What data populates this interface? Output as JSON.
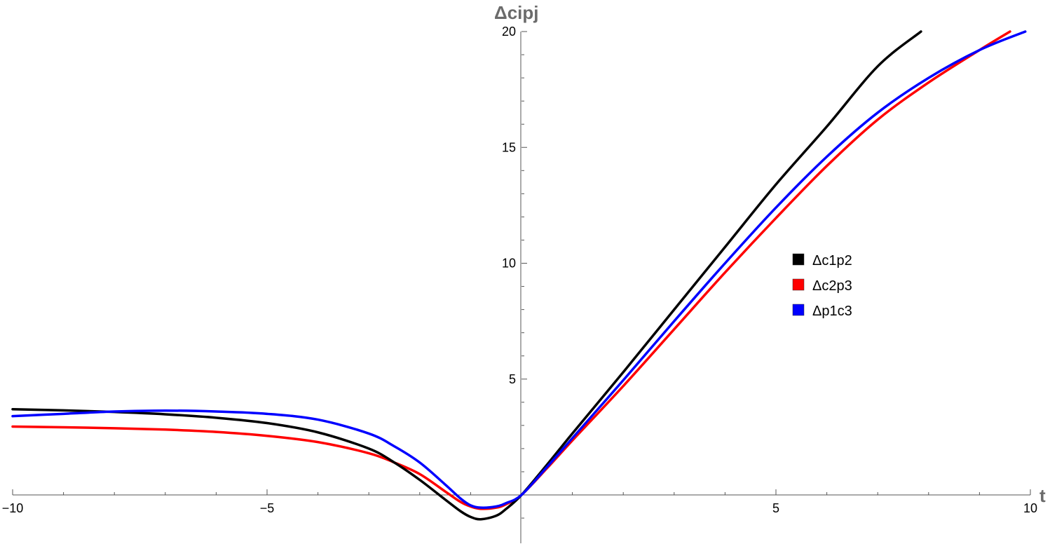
{
  "chart_data": {
    "type": "line",
    "title": "",
    "xlabel": "t",
    "ylabel": "Δcipj",
    "xlim": [
      -10,
      10
    ],
    "ylim": [
      -2,
      20
    ],
    "x_ticks": [
      -10,
      -5,
      5,
      10
    ],
    "y_ticks": [
      5,
      10,
      15,
      20
    ],
    "x_tick_labels": [
      "−10",
      "−5",
      "5",
      "10"
    ],
    "y_tick_labels": [
      "5",
      "10",
      "15",
      "20"
    ],
    "grid": false,
    "legend_placement": "right-middle",
    "series": [
      {
        "name": "Δc1p2",
        "color": "#000000",
        "x": [
          -10,
          -9,
          -8,
          -7,
          -6,
          -5,
          -4,
          -3,
          -2.5,
          -2,
          -1.5,
          -1.2,
          -1,
          -0.8,
          -0.5,
          -0.3,
          0,
          0.5,
          1,
          2,
          3,
          4,
          5,
          6,
          7,
          7.85
        ],
        "y": [
          3.7,
          3.65,
          3.58,
          3.48,
          3.33,
          3.1,
          2.7,
          2.0,
          1.4,
          0.65,
          -0.2,
          -0.7,
          -0.95,
          -1.05,
          -0.9,
          -0.6,
          0,
          1.3,
          2.65,
          5.3,
          8.0,
          10.7,
          13.4,
          15.9,
          18.5,
          20.0
        ]
      },
      {
        "name": "Δc2p3",
        "color": "#ff0000",
        "x": [
          -10,
          -9,
          -8,
          -7,
          -6,
          -5,
          -4,
          -3,
          -2.5,
          -2,
          -1.5,
          -1.2,
          -1,
          -0.8,
          -0.5,
          -0.3,
          0,
          0.5,
          1,
          2,
          3,
          4,
          5,
          6,
          7,
          8,
          9,
          9.6
        ],
        "y": [
          2.95,
          2.92,
          2.88,
          2.82,
          2.72,
          2.55,
          2.28,
          1.8,
          1.4,
          0.9,
          0.15,
          -0.3,
          -0.5,
          -0.6,
          -0.55,
          -0.4,
          0,
          1.15,
          2.35,
          4.7,
          7.15,
          9.6,
          11.95,
          14.2,
          16.2,
          17.8,
          19.2,
          20.0
        ]
      },
      {
        "name": "Δp1c3",
        "color": "#0000ff",
        "x": [
          -10,
          -9,
          -8,
          -7,
          -6,
          -5,
          -4,
          -3,
          -2.5,
          -2,
          -1.5,
          -1.2,
          -1,
          -0.8,
          -0.5,
          -0.3,
          0,
          0.5,
          1,
          2,
          3,
          4,
          5,
          6,
          7,
          8,
          9,
          9.9
        ],
        "y": [
          3.4,
          3.5,
          3.6,
          3.64,
          3.6,
          3.5,
          3.25,
          2.65,
          2.1,
          1.4,
          0.45,
          -0.15,
          -0.45,
          -0.55,
          -0.5,
          -0.35,
          0,
          1.2,
          2.45,
          4.95,
          7.5,
          10.0,
          12.4,
          14.6,
          16.5,
          18.0,
          19.2,
          20.0
        ]
      }
    ]
  }
}
